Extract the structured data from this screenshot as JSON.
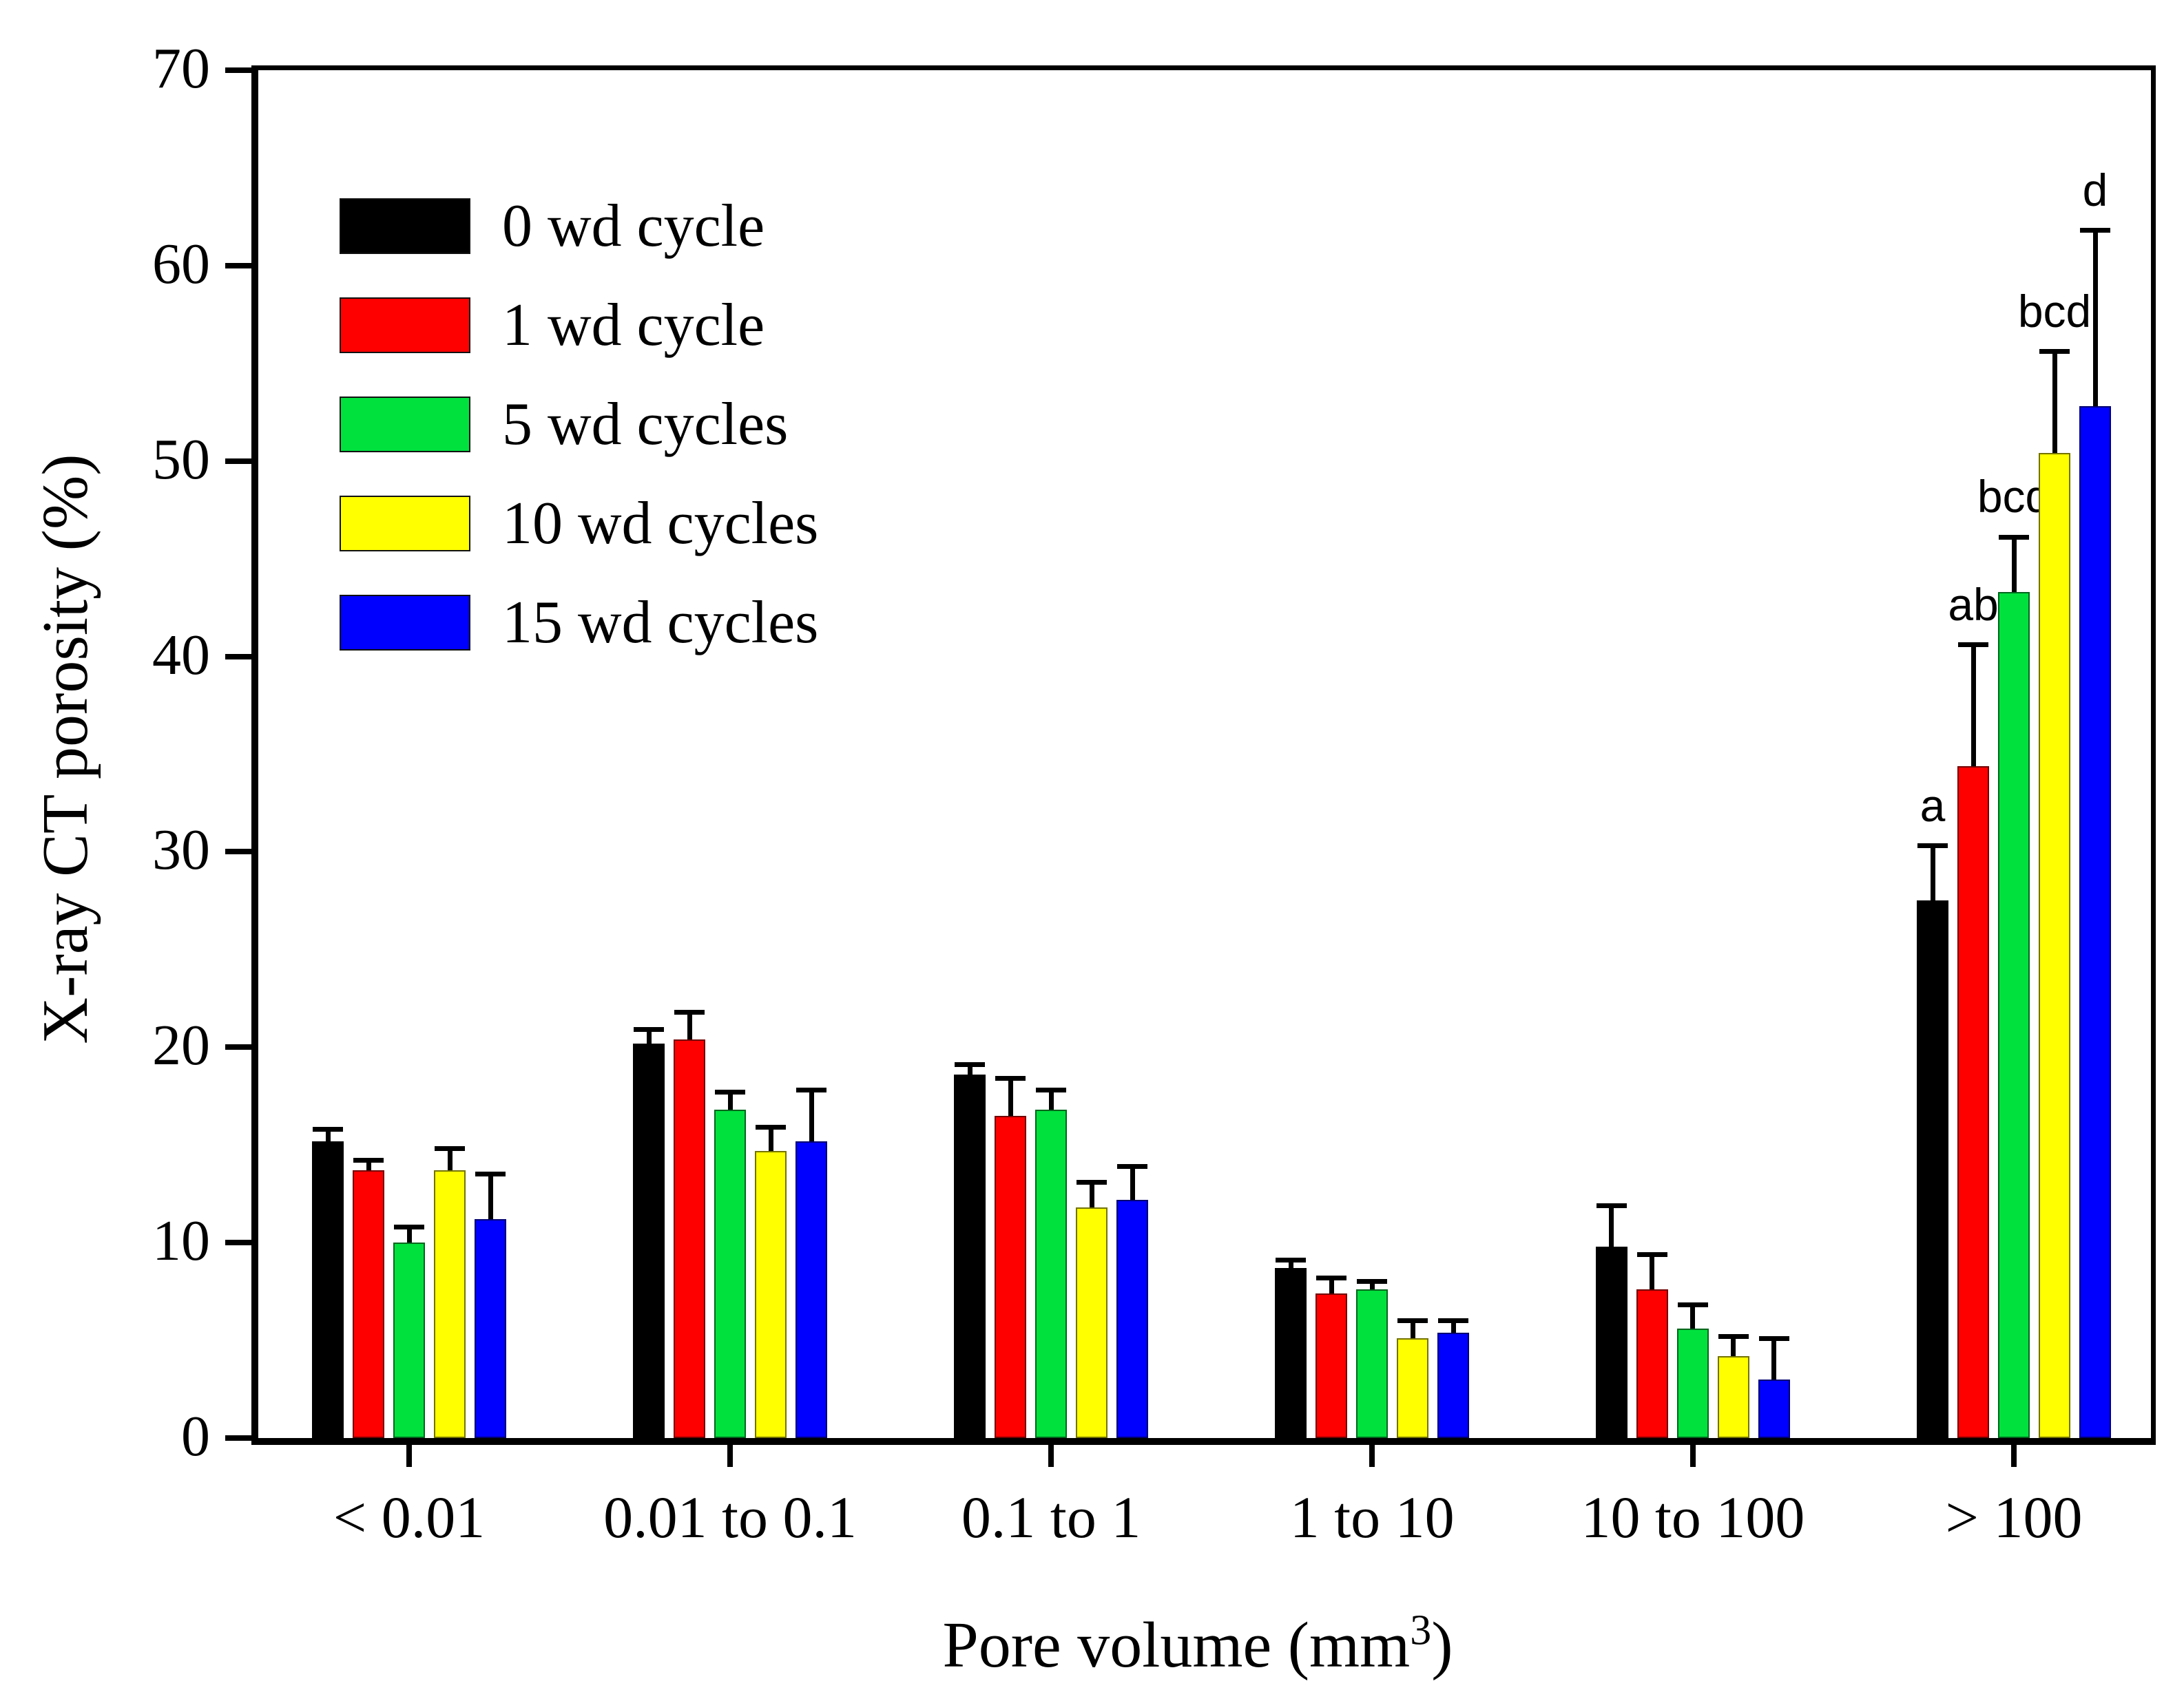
{
  "chart_data": {
    "type": "bar",
    "title": "",
    "ylabel": "X-ray CT porosity (%)",
    "xlabel_parts": {
      "prefix": "Pore volume (mm",
      "sup": "3",
      "suffix": ")"
    },
    "categories": [
      "< 0.01",
      "0.01 to 0.1",
      "0.1 to 1",
      "1 to 10",
      "10 to 100",
      "> 100"
    ],
    "ylim": [
      0,
      70
    ],
    "yticks": [
      0,
      10,
      20,
      30,
      40,
      50,
      60,
      70
    ],
    "grid": false,
    "legend_position": "inside-top-left",
    "error_bars": "upper-side with T caps",
    "series": [
      {
        "name": "0 wd cycle",
        "color": "#000000",
        "values": [
          15.2,
          20.2,
          18.6,
          8.7,
          9.8,
          27.5
        ],
        "errors": [
          0.6,
          0.7,
          0.5,
          0.4,
          2.1,
          2.8
        ],
        "letters": [
          "",
          "",
          "",
          "",
          "",
          "a"
        ]
      },
      {
        "name": "1 wd cycle",
        "color": "#FF0000",
        "values": [
          13.7,
          20.4,
          16.5,
          7.4,
          7.6,
          34.4
        ],
        "errors": [
          0.5,
          1.4,
          1.9,
          0.8,
          1.8,
          6.2
        ],
        "letters": [
          "",
          "",
          "",
          "",
          "",
          "ab"
        ]
      },
      {
        "name": "5 wd cycles",
        "color": "#00E13E",
        "values": [
          10.0,
          16.8,
          16.8,
          7.6,
          5.6,
          43.3
        ],
        "errors": [
          0.8,
          0.9,
          1.0,
          0.4,
          1.2,
          2.8
        ],
        "letters": [
          "",
          "",
          "",
          "",
          "",
          "bcd"
        ]
      },
      {
        "name": "10 wd cycles",
        "color": "#FFFF00",
        "values": [
          13.7,
          14.7,
          11.8,
          5.1,
          4.2,
          50.4
        ],
        "errors": [
          1.1,
          1.2,
          1.3,
          0.9,
          1.0,
          5.2
        ],
        "letters": [
          "",
          "",
          "",
          "",
          "",
          "bcd"
        ]
      },
      {
        "name": "15 wd cycles",
        "color": "#0000FF",
        "values": [
          11.2,
          15.2,
          12.2,
          5.4,
          3.0,
          52.8
        ],
        "errors": [
          2.3,
          2.6,
          1.7,
          0.6,
          2.1,
          9.0
        ],
        "letters": [
          "",
          "",
          "",
          "",
          "",
          "d"
        ]
      }
    ]
  }
}
